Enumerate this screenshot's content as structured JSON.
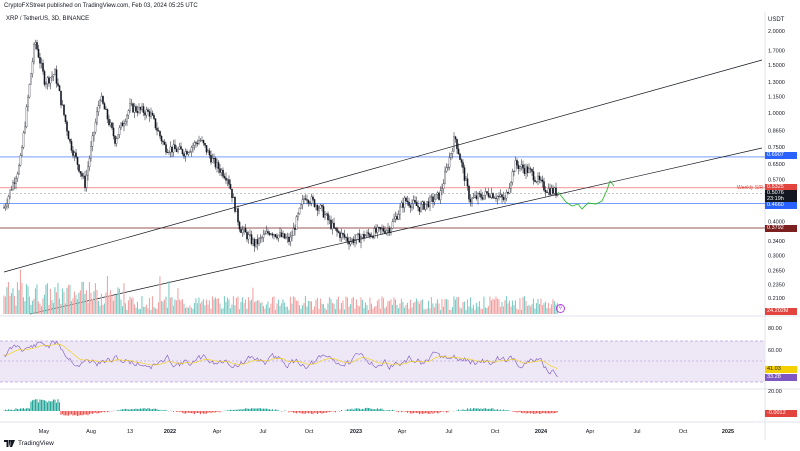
{
  "header": {
    "published": "CryptoFXStreet published on TradingView.com, Feb 03, 2024 05:25 UTC",
    "symbol": "XRP / TetherUS, 3D, BINANCE"
  },
  "price_axis": {
    "unit": "USDT",
    "ticks": [
      "2.0000",
      "1.7000",
      "1.5000",
      "1.3000",
      "1.1500",
      "1.0000",
      "0.8650",
      "0.7500",
      "0.6500",
      "0.5700",
      "0.4600",
      "0.4000",
      "0.3400",
      "0.3000",
      "0.2650",
      "0.2350",
      "0.2100"
    ],
    "scale": "log"
  },
  "price_tags": [
    {
      "label": "0.6907",
      "color": "#2962ff"
    },
    {
      "label": "0.5325",
      "color": "#e2443d"
    },
    {
      "label": "0.5076",
      "color": "#131722"
    },
    {
      "label": "23:19h",
      "color": "#131722"
    },
    {
      "label": "0.4660",
      "color": "#2962ff"
    },
    {
      "label": "0.3792",
      "color": "#7b1f1f"
    }
  ],
  "annotations": {
    "weekly_sr": "Weekly S/R"
  },
  "volume": {
    "label": "24.202M",
    "label_color": "#e2443d"
  },
  "rsi": {
    "ticks": [
      "80.00",
      "60.00",
      "20.00"
    ],
    "values": [
      {
        "label": "41.03",
        "color": "#f5d000",
        "text_color": "#131722"
      },
      {
        "label": "33.28",
        "color": "#7e57c2",
        "text_color": "#ffffff"
      }
    ]
  },
  "macd": {
    "value": {
      "label": "-0.0012",
      "color": "#e2443d"
    }
  },
  "time_axis": [
    "May",
    "Aug",
    "13",
    "2022",
    "Apr",
    "Jul",
    "Oct",
    "2023",
    "Apr",
    "Jul",
    "Oct",
    "2024",
    "Apr",
    "Jul",
    "Oct",
    "2025"
  ],
  "footer": {
    "logo_text": "TradingView"
  },
  "colors": {
    "up": "#26a69a",
    "down": "#ef5350",
    "candle": "#131722",
    "trendline": "#131722",
    "support_blue": "#2962ff",
    "projection": "#2ebd2e",
    "rsi_line": "#7e57c2",
    "rsi_band": "#ede7f6"
  }
}
